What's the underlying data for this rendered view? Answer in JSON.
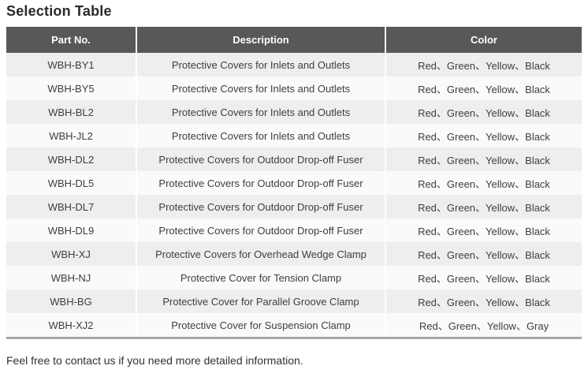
{
  "page": {
    "title": "Selection Table",
    "footer_note": "Feel free to contact us if you need more detailed information."
  },
  "table": {
    "columns": [
      "Part No.",
      "Description",
      "Color"
    ],
    "rows": [
      {
        "part_no": "WBH-BY1",
        "description": "Protective Covers for Inlets and Outlets",
        "color": "Red、Green、Yellow、Black"
      },
      {
        "part_no": "WBH-BY5",
        "description": "Protective Covers for Inlets and Outlets",
        "color": "Red、Green、Yellow、Black"
      },
      {
        "part_no": "WBH-BL2",
        "description": "Protective Covers for Inlets and Outlets",
        "color": "Red、Green、Yellow、Black"
      },
      {
        "part_no": "WBH-JL2",
        "description": "Protective Covers for Inlets and Outlets",
        "color": "Red、Green、Yellow、Black"
      },
      {
        "part_no": "WBH-DL2",
        "description": "Protective Covers for Outdoor Drop-off Fuser",
        "color": "Red、Green、Yellow、Black"
      },
      {
        "part_no": "WBH-DL5",
        "description": "Protective Covers for Outdoor Drop-off Fuser",
        "color": "Red、Green、Yellow、Black"
      },
      {
        "part_no": "WBH-DL7",
        "description": "Protective Covers for Outdoor Drop-off Fuser",
        "color": "Red、Green、Yellow、Black"
      },
      {
        "part_no": "WBH-DL9",
        "description": "Protective Covers for Outdoor Drop-off Fuser",
        "color": "Red、Green、Yellow、Black"
      },
      {
        "part_no": "WBH-XJ",
        "description": "Protective Covers for Overhead Wedge Clamp",
        "color": "Red、Green、Yellow、Black"
      },
      {
        "part_no": "WBH-NJ",
        "description": "Protective Cover for Tension Clamp",
        "color": "Red、Green、Yellow、Black"
      },
      {
        "part_no": "WBH-BG",
        "description": "Protective Cover for Parallel Groove Clamp",
        "color": "Red、Green、Yellow、Black"
      },
      {
        "part_no": "WBH-XJ2",
        "description": "Protective Cover for Suspension Clamp",
        "color": "Red、Green、Yellow、Gray"
      }
    ]
  },
  "colors": {
    "header_bg": "#5a5757",
    "header_text": "#ffffff",
    "row_odd_bg": "#efeeee",
    "row_even_bg": "#fafafa",
    "cell_text": "#3f3e3e",
    "title_text": "#2b2928",
    "footer_text": "#33302f",
    "table_bottom_border": "#a8a8a8"
  }
}
